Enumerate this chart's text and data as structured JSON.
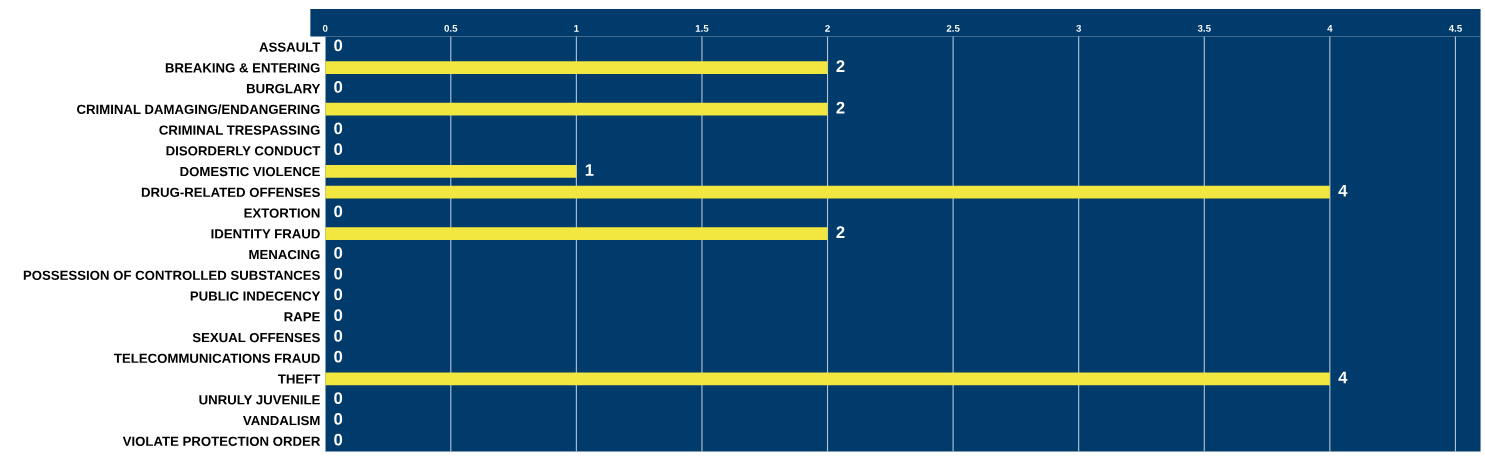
{
  "chart_data": {
    "type": "bar",
    "orientation": "horizontal",
    "categories": [
      "ASSAULT",
      "BREAKING & ENTERING",
      "BURGLARY",
      "CRIMINAL DAMAGING/ENDANGERING",
      "CRIMINAL TRESPASSING",
      "DISORDERLY CONDUCT",
      "DOMESTIC VIOLENCE",
      "DRUG-RELATED OFFENSES",
      "EXTORTION",
      "IDENTITY FRAUD",
      "MENACING",
      "POSSESSION OF CONTROLLED SUBSTANCES",
      "PUBLIC INDECENCY",
      "RAPE",
      "SEXUAL OFFENSES",
      "TELECOMMUNICATIONS FRAUD",
      "THEFT",
      "UNRULY JUVENILE",
      "VANDALISM",
      "VIOLATE PROTECTION ORDER"
    ],
    "values": [
      0,
      2,
      0,
      2,
      0,
      0,
      1,
      4,
      0,
      2,
      0,
      0,
      0,
      0,
      0,
      0,
      4,
      0,
      0,
      0
    ],
    "color": "#f2e640",
    "xlim": [
      0,
      4.6
    ],
    "xticks": [
      0,
      0.5,
      1,
      1.5,
      2,
      2.5,
      3,
      3.5,
      4,
      4.5
    ],
    "grid": "x",
    "data_labels": true
  }
}
